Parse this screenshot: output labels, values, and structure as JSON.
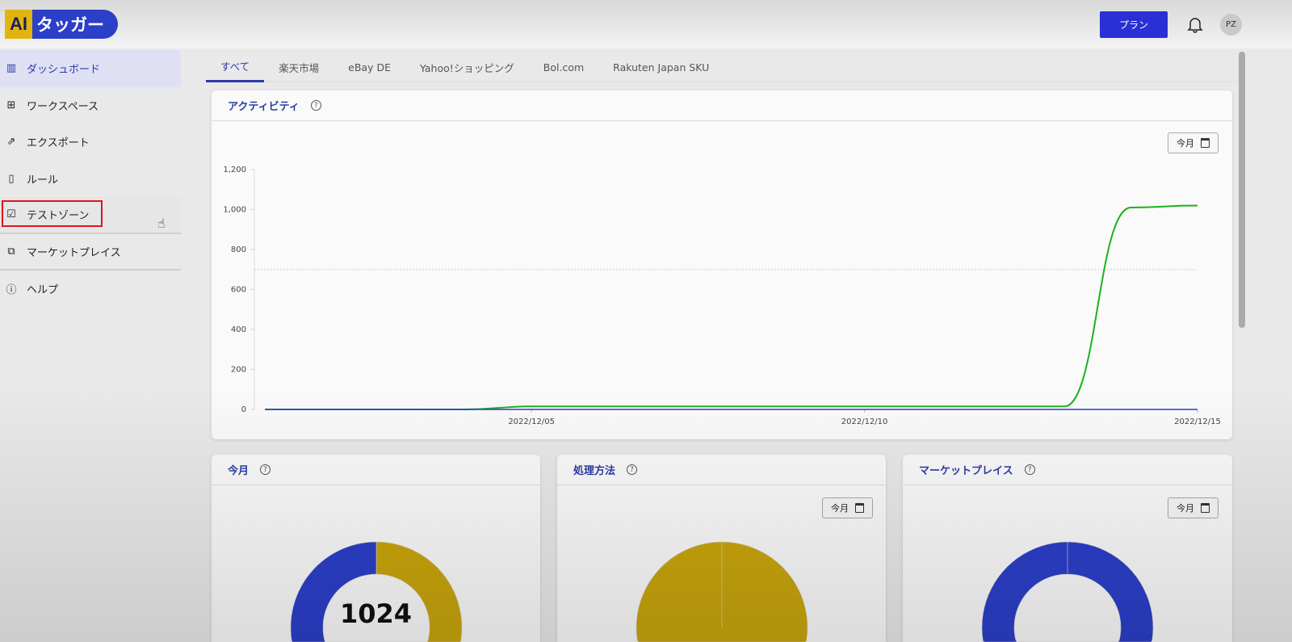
{
  "header": {
    "logo_ai": "AI",
    "logo_text": "タッガー",
    "plan_button": "プラン",
    "bell_icon": "bell-icon",
    "avatar": "PZ"
  },
  "sidebar": {
    "items": [
      {
        "label": "ダッシュボード",
        "icon": "bar-chart-icon",
        "active": true
      },
      {
        "label": "ワークスペース",
        "icon": "grid-icon"
      },
      {
        "label": "エクスポート",
        "icon": "export-icon"
      },
      {
        "label": "ルール",
        "icon": "scroll-icon"
      },
      {
        "label": "テストゾーン",
        "icon": "clipboard-check-icon",
        "highlighted": true
      },
      {
        "label": "マーケットプレイス",
        "icon": "puzzle-icon"
      },
      {
        "label": "ヘルプ",
        "icon": "info-icon"
      }
    ]
  },
  "tabs": [
    "すべて",
    "楽天市場",
    "eBay DE",
    "Yahoo!ショッピング",
    "Bol.com",
    "Rakuten Japan SKU"
  ],
  "activity": {
    "title": "アクティビティ",
    "date_filter": "今月"
  },
  "cards": [
    {
      "title": "今月",
      "center_value": "1024"
    },
    {
      "title": "処理方法",
      "date_filter": "今月"
    },
    {
      "title": "マーケットプレイス",
      "date_filter": "今月"
    }
  ],
  "colors": {
    "accent": "#2c3aa8",
    "green": "#1db11d",
    "blue": "#2b3fc9",
    "yellow": "#c9a50c"
  },
  "chart_data": [
    {
      "type": "line",
      "ylim": [
        0,
        1200
      ],
      "yticks": [
        "0",
        "200",
        "400",
        "600",
        "800",
        "1,000",
        "1,200"
      ],
      "xticks": [
        "2022/12/05",
        "2022/12/10",
        "2022/12/15"
      ],
      "grid": false,
      "reference_line": 700,
      "x": [
        "2022/12/01",
        "2022/12/02",
        "2022/12/03",
        "2022/12/04",
        "2022/12/05",
        "2022/12/06",
        "2022/12/07",
        "2022/12/08",
        "2022/12/09",
        "2022/12/10",
        "2022/12/11",
        "2022/12/12",
        "2022/12/13",
        "2022/12/14",
        "2022/12/15"
      ],
      "series": [
        {
          "color": "#1db11d",
          "values": [
            0,
            0,
            0,
            0,
            15,
            15,
            15,
            15,
            15,
            15,
            15,
            15,
            15,
            1010,
            1020
          ]
        },
        {
          "color": "#2b3fc9",
          "values": [
            0,
            0,
            0,
            0,
            0,
            0,
            0,
            0,
            0,
            0,
            0,
            0,
            0,
            0,
            0
          ]
        }
      ]
    },
    {
      "type": "pie",
      "donut": true,
      "values": [
        50,
        50
      ],
      "colors": [
        "#c9a50c",
        "#2b3fc9"
      ]
    },
    {
      "type": "pie",
      "donut": false,
      "values": [
        100
      ],
      "colors": [
        "#c9a50c"
      ]
    },
    {
      "type": "pie",
      "donut": true,
      "values": [
        100
      ],
      "colors": [
        "#2b3fc9"
      ]
    }
  ]
}
